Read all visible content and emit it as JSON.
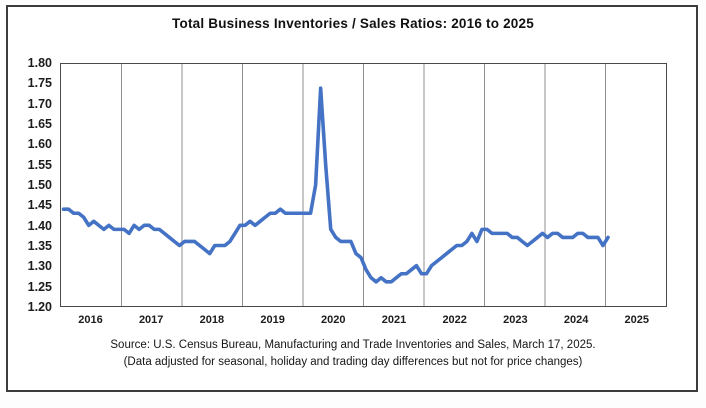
{
  "title": "Total Business Inventories / Sales Ratios: 2016 to 2025",
  "source_line1": "Source: U.S. Census Bureau, Manufacturing and Trade Inventories and Sales, March 17, 2025.",
  "source_line2": "(Data adjusted for seasonal, holiday and trading day differences but not for price changes)",
  "chart_data": {
    "type": "line",
    "title": "Total Business Inventories / Sales Ratios: 2016 to 2025",
    "xlabel": "",
    "ylabel": "",
    "ylim": [
      1.2,
      1.8
    ],
    "y_tick_step": 0.05,
    "y_tick_labels": [
      "1.80",
      "1.75",
      "1.70",
      "1.65",
      "1.60",
      "1.55",
      "1.50",
      "1.45",
      "1.40",
      "1.35",
      "1.30",
      "1.25",
      "1.20"
    ],
    "x_tick_labels": [
      "2016",
      "2017",
      "2018",
      "2019",
      "2020",
      "2021",
      "2022",
      "2023",
      "2024",
      "2025"
    ],
    "grid": "vertical year boundary lines only",
    "legend_position": "none",
    "line_color": "#4472C4",
    "frequency": "monthly",
    "x_start": "2016-01",
    "x_end": "2025-01",
    "series": [
      {
        "name": "Total Business Inventories/Sales Ratio",
        "values": [
          1.44,
          1.44,
          1.43,
          1.43,
          1.42,
          1.4,
          1.41,
          1.4,
          1.39,
          1.4,
          1.39,
          1.39,
          1.39,
          1.38,
          1.4,
          1.39,
          1.4,
          1.4,
          1.39,
          1.39,
          1.38,
          1.37,
          1.36,
          1.35,
          1.36,
          1.36,
          1.36,
          1.35,
          1.34,
          1.33,
          1.35,
          1.35,
          1.35,
          1.36,
          1.38,
          1.4,
          1.4,
          1.41,
          1.4,
          1.41,
          1.42,
          1.43,
          1.43,
          1.44,
          1.43,
          1.43,
          1.43,
          1.43,
          1.43,
          1.43,
          1.5,
          1.74,
          1.55,
          1.39,
          1.37,
          1.36,
          1.36,
          1.36,
          1.33,
          1.32,
          1.29,
          1.27,
          1.26,
          1.27,
          1.26,
          1.26,
          1.27,
          1.28,
          1.28,
          1.29,
          1.3,
          1.28,
          1.28,
          1.3,
          1.31,
          1.32,
          1.33,
          1.34,
          1.35,
          1.35,
          1.36,
          1.38,
          1.36,
          1.39,
          1.39,
          1.38,
          1.38,
          1.38,
          1.38,
          1.37,
          1.37,
          1.36,
          1.35,
          1.36,
          1.37,
          1.38,
          1.37,
          1.38,
          1.38,
          1.37,
          1.37,
          1.37,
          1.38,
          1.38,
          1.37,
          1.37,
          1.37,
          1.35,
          1.37
        ]
      }
    ],
    "annotations": [
      "peak ~1.74 at April 2020",
      "trough ~1.26 in spring 2021"
    ]
  }
}
